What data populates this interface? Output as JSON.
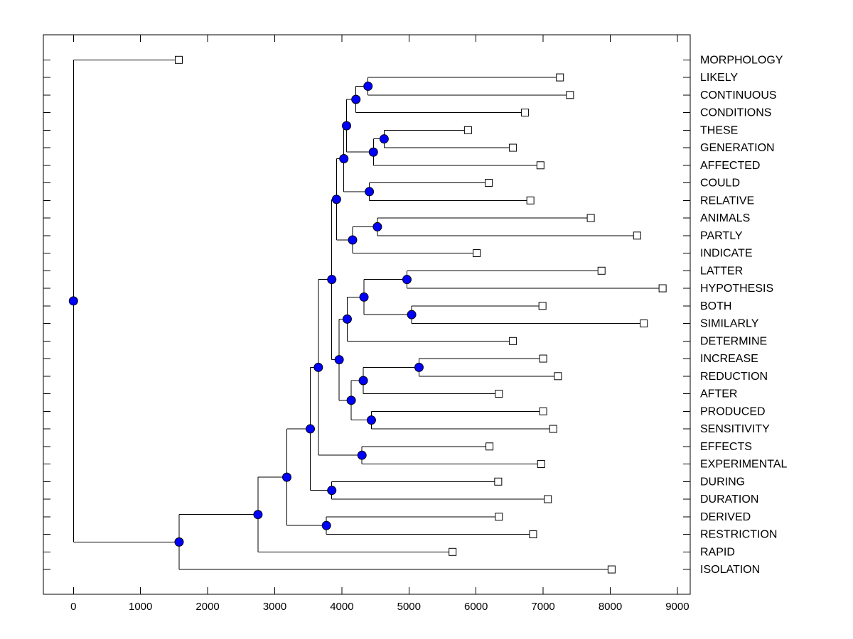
{
  "figure": {
    "background": "#ffffff",
    "title": ""
  },
  "chart_data": {
    "type": "dendrogram",
    "orientation": "horizontal-left-root",
    "title": "",
    "xlabel": "",
    "ylabel": "",
    "x_axis": {
      "min": 0,
      "max": 9000,
      "ticks": [
        0,
        1000,
        2000,
        3000,
        4000,
        5000,
        6000,
        7000,
        8000,
        9000
      ],
      "grid": false
    },
    "legend": null,
    "colors": {
      "branch_line": "#000000",
      "internal_node_fill": "#0000ff",
      "internal_node_edge": "#000000",
      "leaf_marker_fill": "#ffffff",
      "leaf_marker_edge": "#000000",
      "axis_color": "#000000",
      "label_color": "#000000"
    },
    "leaves": [
      {
        "label": "MORPHOLOGY",
        "value": 1570
      },
      {
        "label": "LIKELY",
        "value": 7250
      },
      {
        "label": "CONTINUOUS",
        "value": 7400
      },
      {
        "label": "CONDITIONS",
        "value": 6730
      },
      {
        "label": "THESE",
        "value": 5880
      },
      {
        "label": "GENERATION",
        "value": 6550
      },
      {
        "label": "AFFECTED",
        "value": 6960
      },
      {
        "label": "COULD",
        "value": 6190
      },
      {
        "label": "RELATIVE",
        "value": 6810
      },
      {
        "label": "ANIMALS",
        "value": 7710
      },
      {
        "label": "PARTLY",
        "value": 8400
      },
      {
        "label": "INDICATE",
        "value": 6010
      },
      {
        "label": "LATTER",
        "value": 7870
      },
      {
        "label": "HYPOTHESIS",
        "value": 8780
      },
      {
        "label": "BOTH",
        "value": 6990
      },
      {
        "label": "SIMILARLY",
        "value": 8500
      },
      {
        "label": "DETERMINE",
        "value": 6550
      },
      {
        "label": "INCREASE",
        "value": 7000
      },
      {
        "label": "REDUCTION",
        "value": 7220
      },
      {
        "label": "AFTER",
        "value": 6340
      },
      {
        "label": "PRODUCED",
        "value": 7000
      },
      {
        "label": "SENSITIVITY",
        "value": 7150
      },
      {
        "label": "EFFECTS",
        "value": 6200
      },
      {
        "label": "EXPERIMENTAL",
        "value": 6970
      },
      {
        "label": "DURING",
        "value": 6330
      },
      {
        "label": "DURATION",
        "value": 7070
      },
      {
        "label": "DERIVED",
        "value": 6340
      },
      {
        "label": "RESTRICTION",
        "value": 6850
      },
      {
        "label": "RAPID",
        "value": 5650
      },
      {
        "label": "ISOLATION",
        "value": 8020
      }
    ],
    "merges": [
      {
        "id": "M0",
        "left": "L1",
        "right": "L2",
        "value": 4390
      },
      {
        "id": "M1",
        "left": "M0",
        "right": "L3",
        "value": 4210
      },
      {
        "id": "M2",
        "left": "L4",
        "right": "L5",
        "value": 4630
      },
      {
        "id": "M3",
        "left": "M2",
        "right": "L6",
        "value": 4470
      },
      {
        "id": "M4",
        "left": "M1",
        "right": "M3",
        "value": 4070
      },
      {
        "id": "M5",
        "left": "L7",
        "right": "L8",
        "value": 4410
      },
      {
        "id": "M6",
        "left": "M4",
        "right": "M5",
        "value": 4030
      },
      {
        "id": "M7",
        "left": "L9",
        "right": "L10",
        "value": 4530
      },
      {
        "id": "M8",
        "left": "M7",
        "right": "L11",
        "value": 4160
      },
      {
        "id": "M9",
        "left": "M6",
        "right": "M8",
        "value": 3920
      },
      {
        "id": "M10",
        "left": "L12",
        "right": "L13",
        "value": 4970
      },
      {
        "id": "M11",
        "left": "L14",
        "right": "L15",
        "value": 5040
      },
      {
        "id": "M12",
        "left": "M10",
        "right": "M11",
        "value": 4330
      },
      {
        "id": "M13",
        "left": "M12",
        "right": "L16",
        "value": 4080
      },
      {
        "id": "M14",
        "left": "L17",
        "right": "L18",
        "value": 5150
      },
      {
        "id": "M15",
        "left": "M14",
        "right": "L19",
        "value": 4320
      },
      {
        "id": "M16",
        "left": "L20",
        "right": "L21",
        "value": 4440
      },
      {
        "id": "M17",
        "left": "M15",
        "right": "M16",
        "value": 4140
      },
      {
        "id": "M18",
        "left": "M13",
        "right": "M17",
        "value": 3960
      },
      {
        "id": "M19",
        "left": "M9",
        "right": "M18",
        "value": 3850
      },
      {
        "id": "M20",
        "left": "L22",
        "right": "L23",
        "value": 4300
      },
      {
        "id": "M21",
        "left": "M19",
        "right": "M20",
        "value": 3650
      },
      {
        "id": "M22",
        "left": "L24",
        "right": "L25",
        "value": 3850
      },
      {
        "id": "M23",
        "left": "M21",
        "right": "M22",
        "value": 3530
      },
      {
        "id": "M24",
        "left": "L26",
        "right": "L27",
        "value": 3770
      },
      {
        "id": "M25",
        "left": "M23",
        "right": "M24",
        "value": 3180
      },
      {
        "id": "M26",
        "left": "M25",
        "right": "L28",
        "value": 2750
      },
      {
        "id": "M27",
        "left": "M26",
        "right": "L29",
        "value": 1575
      },
      {
        "id": "M28",
        "left": "L0",
        "right": "M27",
        "value": 0
      }
    ]
  }
}
